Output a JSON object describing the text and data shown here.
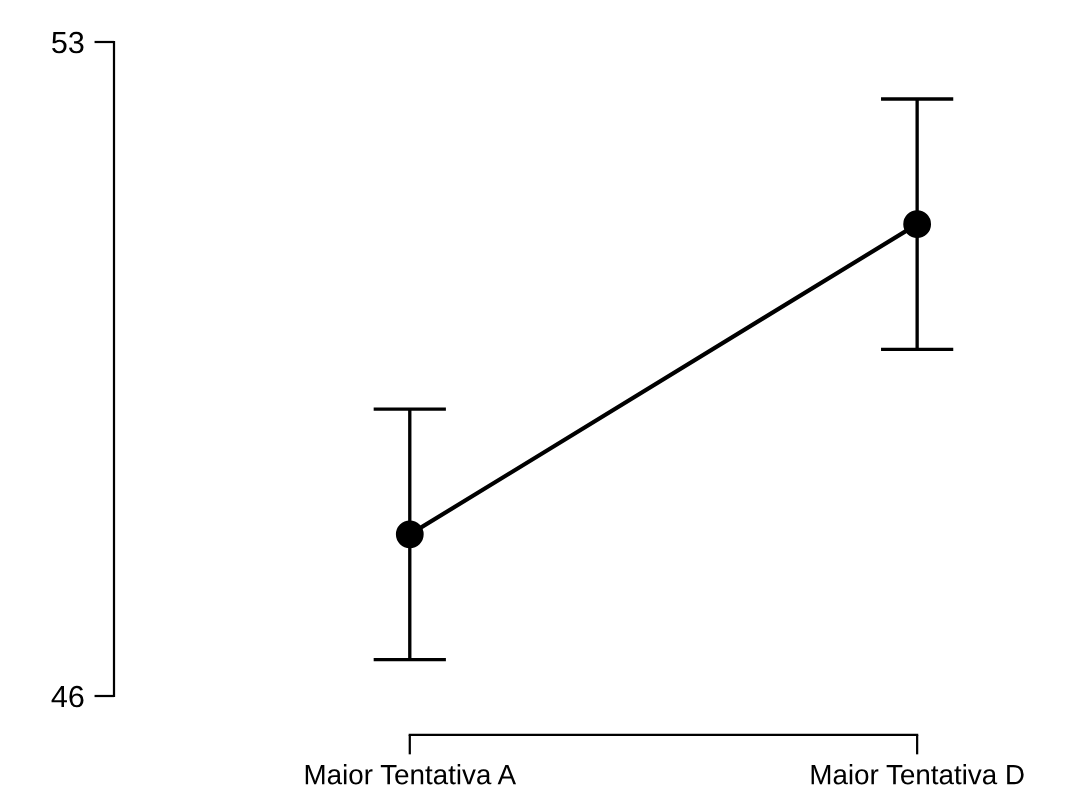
{
  "chart_data": {
    "type": "line",
    "categories": [
      "Maior Tentativa A",
      "Maior Tentativa D"
    ],
    "series": [
      {
        "color": "#000000",
        "values": [
          47.73,
          51.05
        ],
        "errors": [
          1.34,
          1.34
        ]
      }
    ],
    "ylim": [
      46,
      53
    ],
    "yticks": [
      46,
      53
    ],
    "grid": false,
    "legend": false,
    "marker": "circle",
    "line_style": "solid"
  }
}
